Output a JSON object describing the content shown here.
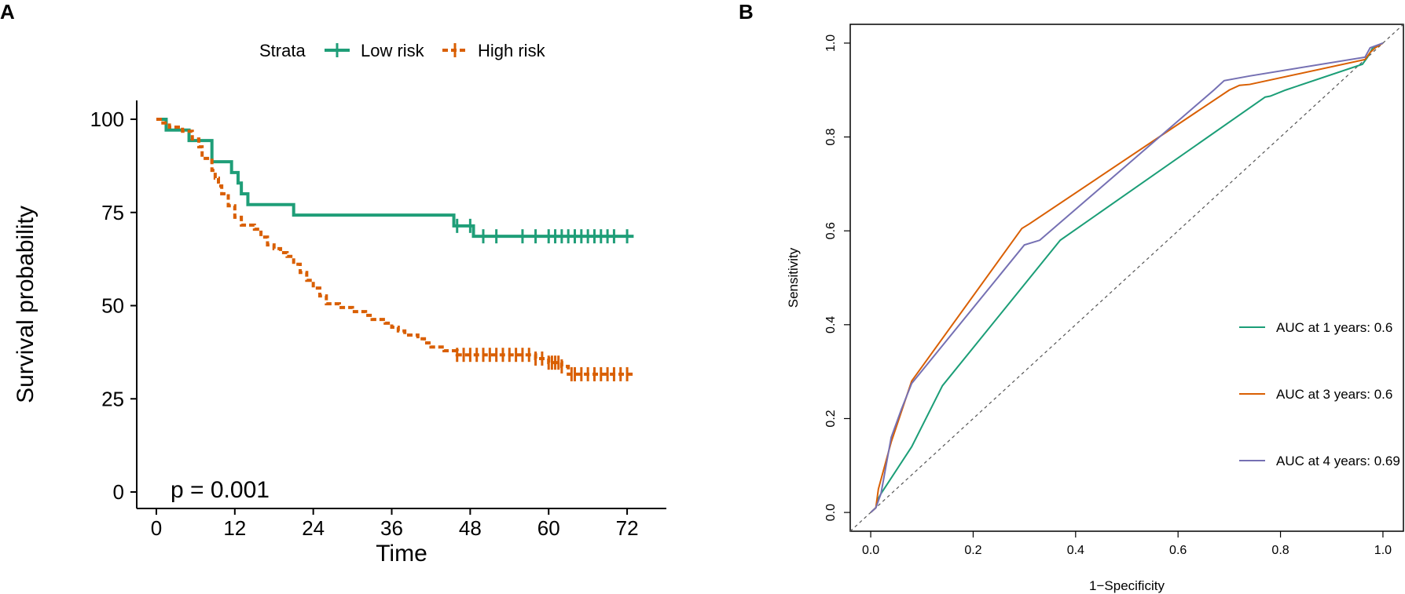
{
  "figure": {
    "panel_a_label": "A",
    "panel_b_label": "B"
  },
  "colors": {
    "low_risk": "#1f9e78",
    "high_risk": "#d95f02",
    "roc_1yr": "#1b9e77",
    "roc_3yr": "#d95f02",
    "roc_4yr": "#7570b3",
    "axis": "#000000",
    "diagonal": "#555555"
  },
  "chart_data": [
    {
      "type": "line",
      "subtype": "kaplan-meier",
      "title": "",
      "xlabel": "Time",
      "ylabel": "Survival probability",
      "xlim": [
        -3,
        78
      ],
      "ylim": [
        0,
        100
      ],
      "xticks": [
        0,
        12,
        24,
        36,
        48,
        60,
        72
      ],
      "yticks": [
        0,
        25,
        50,
        75,
        100
      ],
      "legend_title": "Strata",
      "legend_position": "top",
      "annotation": "p = 0.001",
      "series": [
        {
          "name": "Low risk",
          "key": "low",
          "style": "solid",
          "steps": [
            [
              0,
              100
            ],
            [
              1.5,
              97.1
            ],
            [
              5,
              94.3
            ],
            [
              8.5,
              88.6
            ],
            [
              11.5,
              85.7
            ],
            [
              12.5,
              82.9
            ],
            [
              13,
              80.0
            ],
            [
              14,
              77.1
            ],
            [
              21,
              74.3
            ],
            [
              45.5,
              71.4
            ],
            [
              48.5,
              68.6
            ],
            [
              73,
              68.6
            ]
          ],
          "censor_times": [
            46,
            48,
            50,
            52,
            56,
            58,
            60,
            61,
            62,
            63,
            64,
            65,
            66,
            67,
            68,
            69,
            70,
            72
          ]
        },
        {
          "name": "High risk",
          "key": "high",
          "style": "dashed",
          "steps": [
            [
              0,
              100
            ],
            [
              1,
              99.0
            ],
            [
              2,
              97.9
            ],
            [
              4,
              96.8
            ],
            [
              5.5,
              94.7
            ],
            [
              6.5,
              92.6
            ],
            [
              7,
              89.5
            ],
            [
              8.5,
              86.3
            ],
            [
              9,
              84.2
            ],
            [
              9.5,
              82.1
            ],
            [
              10,
              80.0
            ],
            [
              11,
              76.8
            ],
            [
              12,
              73.7
            ],
            [
              13,
              71.6
            ],
            [
              15,
              70.5
            ],
            [
              16,
              68.4
            ],
            [
              17,
              66.3
            ],
            [
              18,
              65.3
            ],
            [
              19,
              64.2
            ],
            [
              20,
              63.2
            ],
            [
              21,
              61.1
            ],
            [
              22,
              58.9
            ],
            [
              23,
              56.8
            ],
            [
              24,
              54.7
            ],
            [
              25,
              52.6
            ],
            [
              26,
              50.5
            ],
            [
              28,
              49.5
            ],
            [
              30,
              48.4
            ],
            [
              32,
              47.4
            ],
            [
              33,
              46.3
            ],
            [
              35,
              45.3
            ],
            [
              36,
              44.2
            ],
            [
              37,
              43.2
            ],
            [
              38,
              42.1
            ],
            [
              40,
              41.1
            ],
            [
              41,
              40.0
            ],
            [
              42,
              38.9
            ],
            [
              44,
              37.9
            ],
            [
              46,
              36.8
            ],
            [
              58,
              35.8
            ],
            [
              60,
              34.7
            ],
            [
              62,
              33.7
            ],
            [
              63,
              31.6
            ],
            [
              73,
              31.6
            ]
          ],
          "censor_times": [
            46,
            47,
            48,
            49,
            50,
            51,
            52,
            53,
            54,
            55,
            56,
            57,
            58,
            59,
            60,
            60.5,
            61,
            61.5,
            62,
            63.5,
            64,
            65,
            66,
            67,
            68,
            69,
            70,
            71,
            72
          ]
        }
      ]
    },
    {
      "type": "line",
      "subtype": "roc",
      "title": "",
      "xlabel": "1−Specificity",
      "ylabel": "Sensitivity",
      "xlim": [
        -0.04,
        1.04
      ],
      "ylim": [
        -0.04,
        1.04
      ],
      "xticks": [
        0.0,
        0.2,
        0.4,
        0.6,
        0.8,
        1.0
      ],
      "yticks": [
        0.0,
        0.2,
        0.4,
        0.6,
        0.8,
        1.0
      ],
      "xtick_labels": [
        "0.0",
        "0.2",
        "0.4",
        "0.6",
        "0.8",
        "1.0"
      ],
      "ytick_labels": [
        "0.0",
        "0.2",
        "0.4",
        "0.6",
        "0.8",
        "1.0"
      ],
      "legend_position": "bottom-right",
      "series": [
        {
          "name": "AUC at 1 years: 0.6",
          "key": "roc1",
          "x": [
            0,
            0.01,
            0.015,
            0.02,
            0.08,
            0.14,
            0.37,
            0.77,
            0.78,
            0.81,
            0.96,
            0.97,
            0.98,
            1.0
          ],
          "y": [
            0,
            0.01,
            0.03,
            0.04,
            0.14,
            0.27,
            0.58,
            0.885,
            0.887,
            0.9,
            0.955,
            0.97,
            0.99,
            1.0
          ]
        },
        {
          "name": "AUC at 3 years: 0.6",
          "key": "roc3",
          "x": [
            0,
            0.01,
            0.015,
            0.04,
            0.08,
            0.295,
            0.31,
            0.7,
            0.72,
            0.74,
            0.965,
            0.975,
            0.985,
            1.0
          ],
          "y": [
            0,
            0.01,
            0.05,
            0.15,
            0.28,
            0.605,
            0.615,
            0.9,
            0.91,
            0.912,
            0.965,
            0.98,
            0.99,
            1.0
          ]
        },
        {
          "name": "AUC at 4 years: 0.69",
          "key": "roc4",
          "x": [
            0,
            0.01,
            0.02,
            0.04,
            0.06,
            0.08,
            0.3,
            0.33,
            0.67,
            0.69,
            0.74,
            0.965,
            0.975,
            1.0
          ],
          "y": [
            0,
            0.01,
            0.04,
            0.16,
            0.22,
            0.275,
            0.57,
            0.58,
            0.9,
            0.92,
            0.93,
            0.97,
            0.99,
            1.0
          ]
        }
      ]
    }
  ]
}
